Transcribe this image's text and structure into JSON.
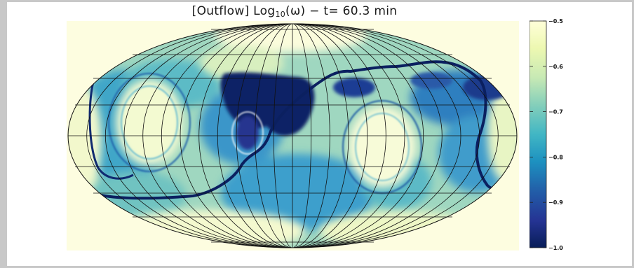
{
  "figure": {
    "title_prefix": "[Outflow] Log",
    "title_sub": "10",
    "title_suffix": "(ω) − t= 60.3 min"
  },
  "colorbar": {
    "ticks": [
      "−0.5",
      "−0.6",
      "−0.7",
      "−0.8",
      "−0.9",
      "−1.0"
    ],
    "tick_values": [
      -0.5,
      -0.6,
      -0.7,
      -0.8,
      -0.9,
      -1.0
    ],
    "range": [
      -1.0,
      -0.5
    ],
    "colormap": [
      "#ffffd9",
      "#edf8b1",
      "#c7e9b4",
      "#7fcdbb",
      "#41b6c4",
      "#1d91c0",
      "#225ea8",
      "#253494",
      "#081d58"
    ]
  },
  "map": {
    "projection": "mollweide",
    "background": "#fdfde0"
  }
}
